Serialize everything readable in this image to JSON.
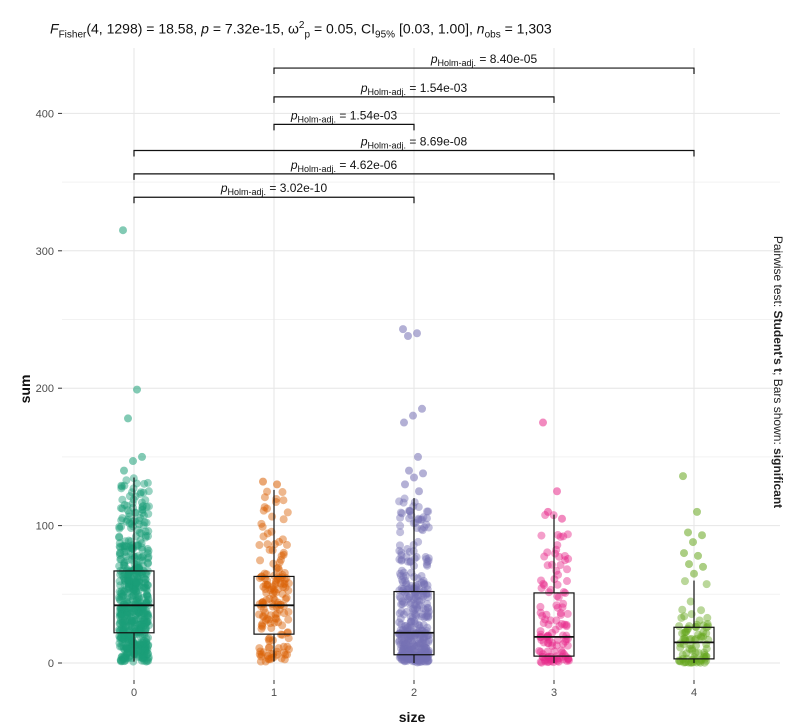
{
  "subtitle": {
    "stat": "F",
    "stat_sub": "Fisher",
    "stat_args": "(4, 1298) = 18.58,",
    "p_label": "p",
    "p_value": "= 7.32e-15,",
    "effect": "ω",
    "effect_sup": "2",
    "effect_sub": "p",
    "effect_value": "= 0.05,",
    "ci_label": "CI",
    "ci_sub": "95%",
    "ci_value": "[0.03, 1.00],",
    "n_label": "n",
    "n_sub": "obs",
    "n_value": "= 1,303"
  },
  "caption": {
    "prefix": "Pairwise test:",
    "test": "Student's t",
    "middle": "; Bars shown:",
    "shown": "significant"
  },
  "chart_data": {
    "type": "boxplot",
    "xlabel": "size",
    "ylabel": "sum",
    "categories": [
      "0",
      "1",
      "2",
      "3",
      "4"
    ],
    "ylim": [
      -12,
      448
    ],
    "yticks": [
      0,
      100,
      200,
      300,
      400
    ],
    "grid": true,
    "colors": [
      "#1b9e77",
      "#d95f02",
      "#7570b3",
      "#e7298a",
      "#66a61e"
    ],
    "boxes": [
      {
        "category": "0",
        "whisker_low": 1,
        "q1": 22,
        "median": 42,
        "q3": 67,
        "whisker_high": 135
      },
      {
        "category": "1",
        "whisker_low": 1,
        "q1": 21,
        "median": 42,
        "q3": 63,
        "whisker_high": 126
      },
      {
        "category": "2",
        "whisker_low": 0,
        "q1": 6,
        "median": 22,
        "q3": 52,
        "whisker_high": 120
      },
      {
        "category": "3",
        "whisker_low": 0,
        "q1": 5,
        "median": 19,
        "q3": 51,
        "whisker_high": 108
      },
      {
        "category": "4",
        "whisker_low": 0,
        "q1": 3,
        "median": 15,
        "q3": 26,
        "whisker_high": 60
      }
    ],
    "outliers": [
      {
        "category": "0",
        "values": [
          315,
          199,
          178,
          150,
          147,
          140
        ]
      },
      {
        "category": "1",
        "values": [
          132,
          130
        ]
      },
      {
        "category": "2",
        "values": [
          243,
          240,
          238,
          185,
          180,
          175,
          150,
          140,
          138,
          135,
          130,
          125
        ]
      },
      {
        "category": "3",
        "values": [
          175,
          125,
          110,
          105
        ]
      },
      {
        "category": "4",
        "values": [
          136,
          110,
          95,
          93,
          88,
          80,
          78,
          72,
          70,
          65
        ]
      }
    ],
    "points_per_group": [
      560,
      160,
      380,
      120,
      83
    ],
    "comparisons": [
      {
        "group1": "1",
        "group2": "4",
        "label_p": "p",
        "label_sub": "Holm-adj.",
        "label_value": "= 8.40e-05"
      },
      {
        "group1": "1",
        "group2": "3",
        "label_p": "p",
        "label_sub": "Holm-adj.",
        "label_value": "= 1.54e-03"
      },
      {
        "group1": "1",
        "group2": "2",
        "label_p": "p",
        "label_sub": "Holm-adj.",
        "label_value": "= 1.54e-03"
      },
      {
        "group1": "0",
        "group2": "4",
        "label_p": "p",
        "label_sub": "Holm-adj.",
        "label_value": "= 8.69e-08"
      },
      {
        "group1": "0",
        "group2": "3",
        "label_p": "p",
        "label_sub": "Holm-adj.",
        "label_value": "= 4.62e-06"
      },
      {
        "group1": "0",
        "group2": "2",
        "label_p": "p",
        "label_sub": "Holm-adj.",
        "label_value": "= 3.02e-10"
      }
    ],
    "comparison_levels": [
      433,
      412,
      392,
      373,
      356,
      339
    ]
  }
}
